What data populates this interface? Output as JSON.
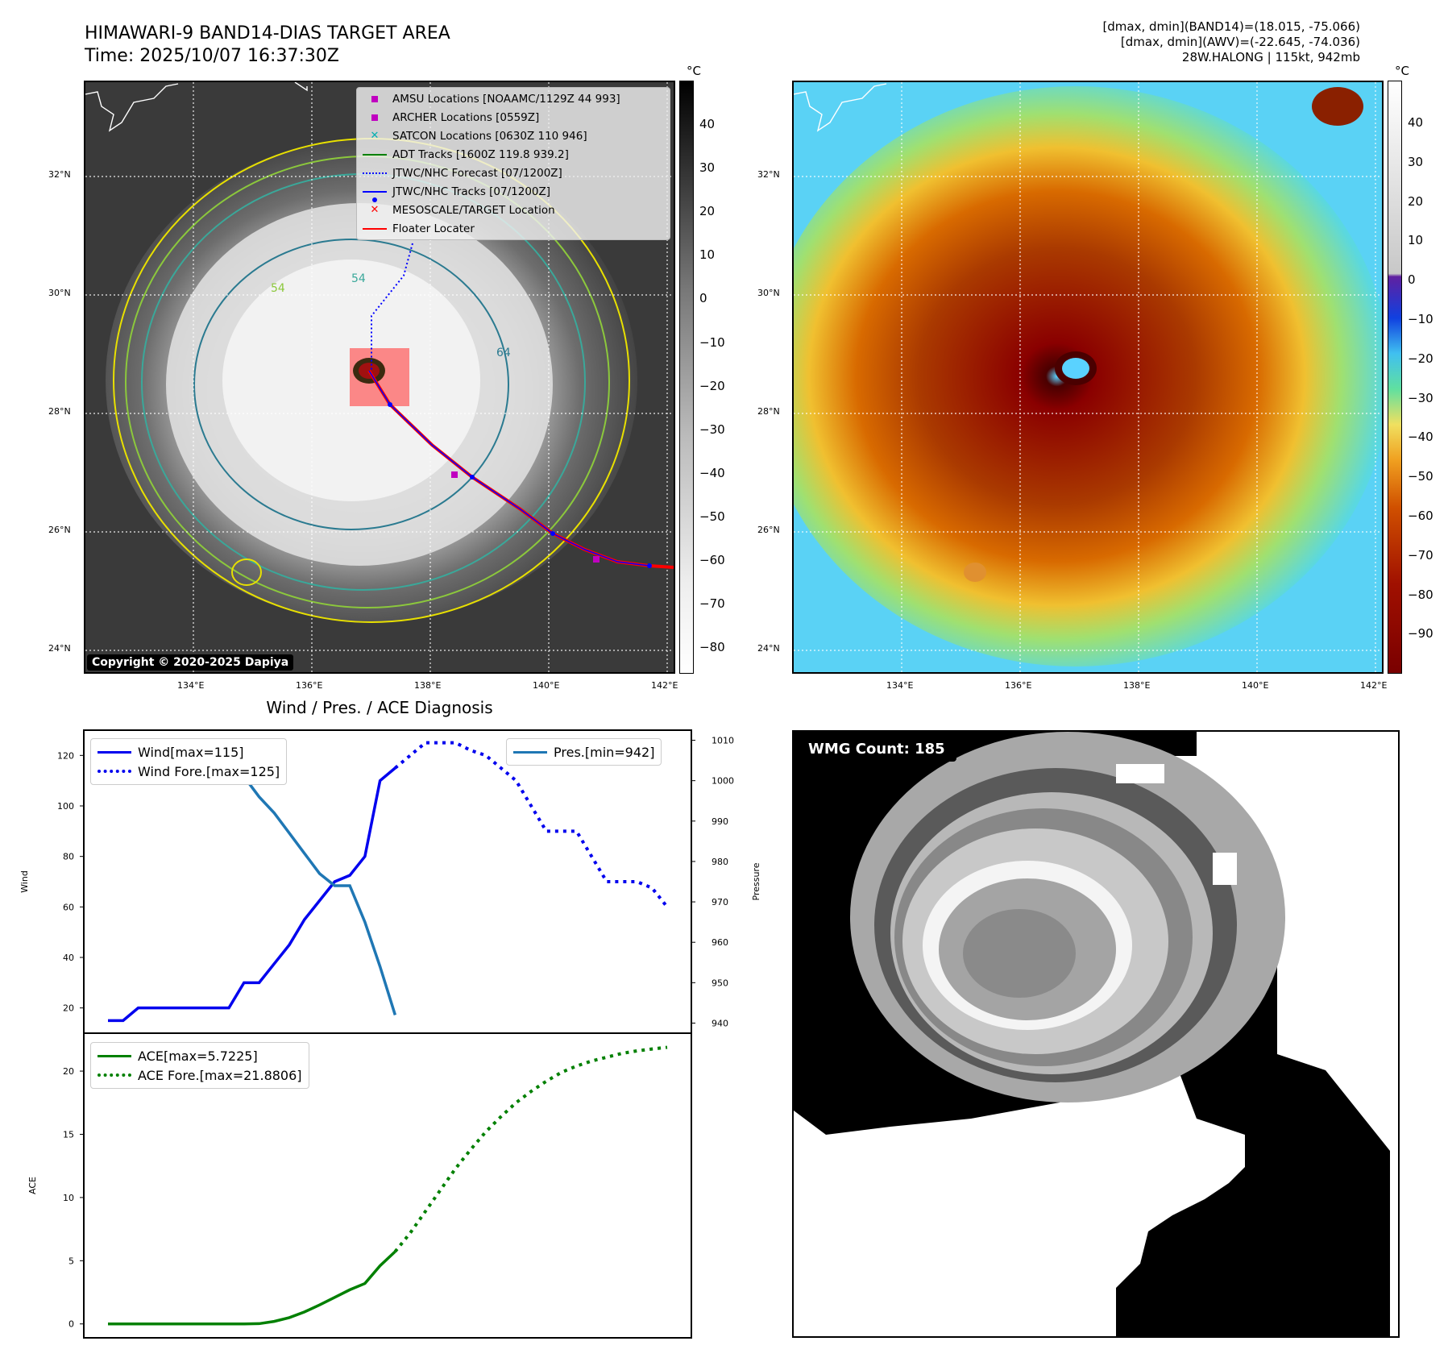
{
  "header": {
    "title": "HIMAWARI-9 BAND14-DIAS TARGET AREA",
    "time": "Time: 2025/10/07 16:37:30Z",
    "info_line1": "[dmax, dmin](BAND14)=(18.015, -75.066)",
    "info_line2": "[dmax, dmin](AWV)=(-22.645, -74.036)",
    "info_line3": "28W.HALONG | 115kt, 942mb"
  },
  "map": {
    "lat_labels": [
      "32°N",
      "30°N",
      "28°N",
      "26°N",
      "24°N"
    ],
    "lon_labels": [
      "134°E",
      "136°E",
      "138°E",
      "140°E",
      "142°E"
    ],
    "contour_labels": [
      "54",
      "64",
      "54"
    ],
    "copyright": "Copyright © 2020-2025 Dapiya",
    "legend": [
      {
        "label": "AMSU Locations [NOAAMC/1129Z 44 993]",
        "symbol": "square",
        "color": "#c000c0"
      },
      {
        "label": "ARCHER Locations [0559Z]",
        "symbol": "square",
        "color": "#c000c0"
      },
      {
        "label": "SATCON Locations [0630Z 110 946]",
        "symbol": "x",
        "color": "#00b0b0"
      },
      {
        "label": "ADT Tracks [1600Z 119.8 939.2]",
        "symbol": "line",
        "color": "#008000"
      },
      {
        "label": "JTWC/NHC Forecast [07/1200Z]",
        "symbol": "dotted",
        "color": "#0000ff"
      },
      {
        "label": "JTWC/NHC Tracks [07/1200Z]",
        "symbol": "line-dot",
        "color": "#0000ff"
      },
      {
        "label": "MESOSCALE/TARGET Location",
        "symbol": "x",
        "color": "#ff0000"
      },
      {
        "label": "Floater Locater",
        "symbol": "line",
        "color": "#ff0000"
      }
    ]
  },
  "colorbars": {
    "unit": "°C",
    "gray_ticks": [
      "40",
      "30",
      "20",
      "10",
      "0",
      "−10",
      "−20",
      "−30",
      "−40",
      "−50",
      "−60",
      "−70",
      "−80"
    ],
    "color_ticks": [
      "40",
      "30",
      "20",
      "10",
      "0",
      "−10",
      "−20",
      "−30",
      "−40",
      "−50",
      "−60",
      "−70",
      "−80",
      "−90"
    ]
  },
  "chart_data": [
    {
      "type": "line",
      "title": "Wind / Pres. / ACE Diagnosis",
      "ylabel": "Wind",
      "y2label": "Pressure",
      "ylim": [
        10,
        130
      ],
      "y2lim": [
        937.5,
        1012.5
      ],
      "yticks": [
        "120",
        "100",
        "80",
        "60",
        "40",
        "20"
      ],
      "y2ticks": [
        "1010",
        "1000",
        "990",
        "980",
        "970",
        "960",
        "950",
        "940"
      ],
      "series": [
        {
          "name": "Wind[max=115]",
          "style": "solid",
          "color": "#0000ee",
          "x": [
            0,
            1,
            2,
            3,
            4,
            5,
            6,
            7,
            8,
            9,
            10,
            11,
            12,
            13,
            14,
            15,
            16,
            17,
            18,
            19
          ],
          "values": [
            15,
            15,
            20,
            20,
            20,
            20,
            20,
            20,
            20,
            30,
            30,
            37.5,
            45,
            55,
            62.5,
            70,
            72.5,
            80,
            110,
            115
          ]
        },
        {
          "name": "Wind Fore.[max=125]",
          "style": "dotted",
          "color": "#0000ee",
          "x": [
            19,
            20,
            21,
            22,
            23,
            24,
            25,
            26,
            27,
            28,
            29,
            30,
            31,
            32,
            33,
            34,
            35,
            36,
            37
          ],
          "values": [
            115,
            120,
            125,
            125,
            125,
            122,
            120,
            115,
            110,
            100,
            90,
            90,
            90,
            80,
            70,
            70,
            70,
            67.5,
            60
          ]
        },
        {
          "name": "Pres.[min=942]",
          "style": "solid",
          "color": "#1f77b4",
          "axis": "right",
          "x": [
            0,
            1,
            2,
            3,
            4,
            5,
            6,
            7,
            8,
            9,
            10,
            11,
            12,
            13,
            14,
            15,
            16,
            17,
            18,
            19
          ],
          "values": [
            1008,
            1008,
            1008,
            1009,
            1010,
            1010,
            1008,
            1006,
            1003,
            1001,
            996,
            992,
            987,
            982,
            977,
            974,
            974,
            965,
            954,
            942
          ]
        }
      ]
    },
    {
      "type": "line",
      "ylabel": "ACE",
      "ylim": [
        -1.1,
        23
      ],
      "yticks": [
        "20",
        "15",
        "10",
        "5",
        "0"
      ],
      "series": [
        {
          "name": "ACE[max=5.7225]",
          "style": "solid",
          "color": "#008000",
          "x": [
            0,
            1,
            2,
            3,
            4,
            5,
            6,
            7,
            8,
            9,
            10,
            11,
            12,
            13,
            14,
            15,
            16,
            17,
            18,
            19
          ],
          "values": [
            0,
            0,
            0,
            0,
            0,
            0,
            0,
            0,
            0,
            0,
            0.02,
            0.2,
            0.5,
            0.95,
            1.5,
            2.1,
            2.7,
            3.2,
            4.6,
            5.7225
          ]
        },
        {
          "name": "ACE Fore.[max=21.8806]",
          "style": "dotted",
          "color": "#008000",
          "x": [
            19,
            20,
            21,
            22,
            23,
            24,
            25,
            26,
            27,
            28,
            29,
            30,
            31,
            32,
            33,
            34,
            35,
            36,
            37
          ],
          "values": [
            5.7225,
            7.2,
            8.9,
            10.6,
            12.3,
            13.8,
            15.2,
            16.4,
            17.5,
            18.4,
            19.2,
            19.9,
            20.4,
            20.8,
            21.1,
            21.4,
            21.6,
            21.75,
            21.8806
          ]
        }
      ]
    }
  ],
  "wmg": {
    "label": "WMG Count: 185"
  }
}
